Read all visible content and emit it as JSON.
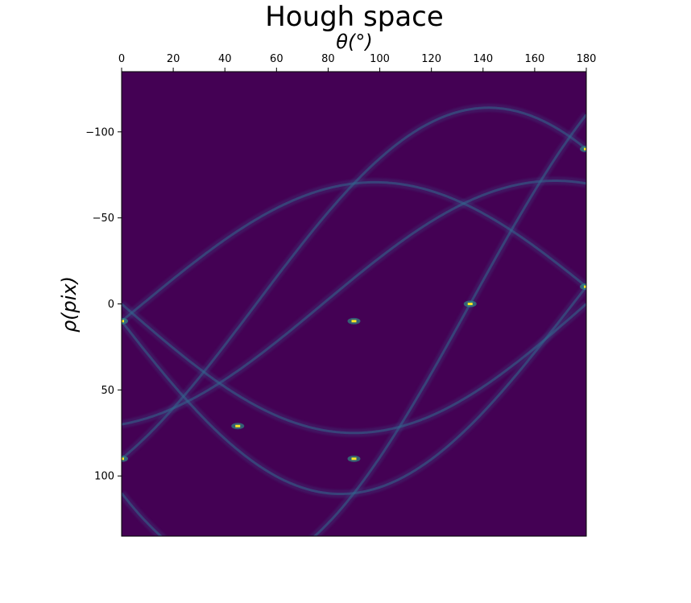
{
  "chart_data": {
    "type": "heatmap",
    "title": "Hough space",
    "xlabel": "θ(°)",
    "ylabel": "ρ(pix)",
    "xlim": [
      0,
      180
    ],
    "ylim": [
      -135,
      135
    ],
    "x_axis_position": "top",
    "y_axis_inverted": true,
    "grid": false,
    "colormap": "viridis",
    "background_color": "#440154",
    "x_ticks": [
      0,
      20,
      40,
      60,
      80,
      100,
      120,
      140,
      160,
      180
    ],
    "x_tick_labels": [
      "0",
      "20",
      "40",
      "60",
      "80",
      "100",
      "120",
      "140",
      "160",
      "180"
    ],
    "y_ticks": [
      -100,
      -50,
      0,
      50,
      100
    ],
    "y_tick_labels": [
      "−100",
      "−50",
      "0",
      "50",
      "100"
    ],
    "curves": [
      {
        "A": 10,
        "B": 0,
        "C": -70
      },
      {
        "A": 90,
        "B": 0,
        "C": -70
      },
      {
        "A": 70,
        "B": -45,
        "C": -60
      },
      {
        "A": 10,
        "B": -180,
        "C": -70
      },
      {
        "A": 110,
        "B": -180,
        "C": -70
      },
      {
        "A": 0,
        "B": -135,
        "C": -60
      }
    ],
    "peaks": [
      {
        "theta": 0,
        "rho": 10
      },
      {
        "theta": 90,
        "rho": 10
      },
      {
        "theta": 0,
        "rho": 90
      },
      {
        "theta": 90,
        "rho": 90
      },
      {
        "theta": 45,
        "rho": 71
      },
      {
        "theta": 135,
        "rho": 0
      },
      {
        "theta": 180,
        "rho": -10
      },
      {
        "theta": 180,
        "rho": -90
      }
    ]
  }
}
